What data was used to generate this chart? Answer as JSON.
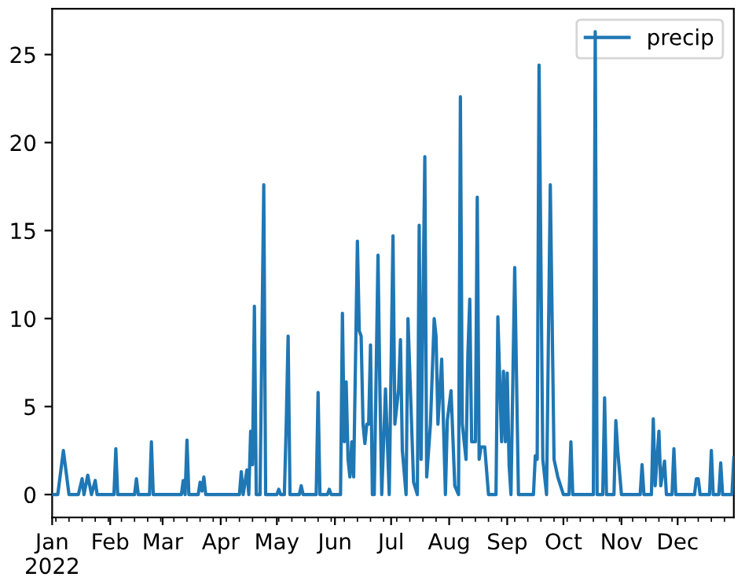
{
  "chart_data": {
    "type": "line",
    "x": [
      "2022-01-01",
      "2022-01-04",
      "2022-01-07",
      "2022-01-10",
      "2022-01-15",
      "2022-01-17",
      "2022-01-18",
      "2022-01-20",
      "2022-01-22",
      "2022-01-24",
      "2022-01-25",
      "2022-02-03",
      "2022-02-04",
      "2022-02-05",
      "2022-02-14",
      "2022-02-15",
      "2022-02-16",
      "2022-02-22",
      "2022-02-23",
      "2022-02-24",
      "2022-03-11",
      "2022-03-12",
      "2022-03-13",
      "2022-03-14",
      "2022-03-15",
      "2022-03-20",
      "2022-03-21",
      "2022-03-22",
      "2022-03-23",
      "2022-03-24",
      "2022-04-11",
      "2022-04-12",
      "2022-04-13",
      "2022-04-15",
      "2022-04-16",
      "2022-04-17",
      "2022-04-18",
      "2022-04-19",
      "2022-04-20",
      "2022-04-22",
      "2022-04-24",
      "2022-04-25",
      "2022-05-01",
      "2022-05-02",
      "2022-05-03",
      "2022-05-05",
      "2022-05-06",
      "2022-05-07",
      "2022-05-08",
      "2022-05-13",
      "2022-05-14",
      "2022-05-15",
      "2022-05-22",
      "2022-05-23",
      "2022-05-24",
      "2022-05-28",
      "2022-05-29",
      "2022-05-30",
      "2022-06-04",
      "2022-06-05",
      "2022-06-06",
      "2022-06-07",
      "2022-06-08",
      "2022-06-09",
      "2022-06-10",
      "2022-06-11",
      "2022-06-13",
      "2022-06-14",
      "2022-06-15",
      "2022-06-16",
      "2022-06-17",
      "2022-06-18",
      "2022-06-19",
      "2022-06-20",
      "2022-06-21",
      "2022-06-22",
      "2022-06-24",
      "2022-06-25",
      "2022-06-26",
      "2022-06-28",
      "2022-06-30",
      "2022-07-02",
      "2022-07-03",
      "2022-07-05",
      "2022-07-06",
      "2022-07-07",
      "2022-07-09",
      "2022-07-10",
      "2022-07-13",
      "2022-07-15",
      "2022-07-16",
      "2022-07-17",
      "2022-07-19",
      "2022-07-20",
      "2022-07-22",
      "2022-07-24",
      "2022-07-25",
      "2022-07-26",
      "2022-07-28",
      "2022-07-30",
      "2022-07-31",
      "2022-08-02",
      "2022-08-04",
      "2022-08-06",
      "2022-08-07",
      "2022-08-08",
      "2022-08-10",
      "2022-08-11",
      "2022-08-12",
      "2022-08-13",
      "2022-08-15",
      "2022-08-16",
      "2022-08-17",
      "2022-08-18",
      "2022-08-20",
      "2022-08-22",
      "2022-08-26",
      "2022-08-27",
      "2022-08-29",
      "2022-08-30",
      "2022-08-31",
      "2022-09-01",
      "2022-09-02",
      "2022-09-03",
      "2022-09-05",
      "2022-09-07",
      "2022-09-15",
      "2022-09-16",
      "2022-09-17",
      "2022-09-18",
      "2022-09-20",
      "2022-09-22",
      "2022-09-24",
      "2022-09-26",
      "2022-09-28",
      "2022-10-01",
      "2022-10-04",
      "2022-10-05",
      "2022-10-06",
      "2022-10-17",
      "2022-10-18",
      "2022-10-19",
      "2022-10-22",
      "2022-10-23",
      "2022-10-24",
      "2022-10-28",
      "2022-10-29",
      "2022-10-30",
      "2022-11-01",
      "2022-11-11",
      "2022-11-12",
      "2022-11-13",
      "2022-11-17",
      "2022-11-18",
      "2022-11-19",
      "2022-11-21",
      "2022-11-22",
      "2022-11-24",
      "2022-11-25",
      "2022-11-28",
      "2022-11-29",
      "2022-11-30",
      "2022-12-10",
      "2022-12-11",
      "2022-12-12",
      "2022-12-13",
      "2022-12-18",
      "2022-12-19",
      "2022-12-20",
      "2022-12-23",
      "2022-12-24",
      "2022-12-25",
      "2022-12-30",
      "2022-12-31"
    ],
    "series": [
      {
        "name": "precip",
        "color": "#1f77b4",
        "values": [
          0,
          0,
          2.5,
          0,
          0,
          0.9,
          0,
          1.1,
          0,
          0.8,
          0,
          0,
          2.6,
          0,
          0,
          0.9,
          0,
          0,
          3.0,
          0,
          0,
          0.8,
          0,
          3.1,
          0,
          0,
          0.7,
          0.2,
          1.0,
          0,
          0,
          1.3,
          0,
          1.4,
          0,
          3.6,
          1.7,
          10.7,
          0,
          0,
          17.6,
          0,
          0,
          0.3,
          0,
          0,
          4.0,
          9.0,
          0,
          0,
          0.5,
          0,
          0,
          5.8,
          0,
          0,
          0.3,
          0,
          0,
          10.3,
          3.0,
          6.4,
          2.0,
          1.0,
          3.0,
          1.0,
          14.4,
          9.3,
          9.0,
          4.0,
          2.9,
          4.0,
          4.0,
          8.5,
          0,
          0,
          13.6,
          6.0,
          0,
          6.0,
          0,
          14.7,
          4.0,
          6.0,
          8.8,
          2.5,
          0,
          10.0,
          0.7,
          0,
          15.3,
          2.0,
          19.2,
          1.0,
          4.0,
          10.0,
          9.0,
          4.0,
          7.7,
          0,
          4.2,
          5.9,
          0.5,
          0,
          22.6,
          4.0,
          2.0,
          8.0,
          11.1,
          3.0,
          3.0,
          16.9,
          2.0,
          2.7,
          2.7,
          0,
          0,
          10.1,
          3.0,
          7.0,
          3.0,
          6.9,
          1.7,
          0,
          12.9,
          0,
          0,
          2.2,
          2.0,
          24.4,
          2.0,
          0,
          17.6,
          2.0,
          1.0,
          0,
          0,
          3.0,
          0,
          0,
          26.3,
          0,
          0,
          5.5,
          0,
          0,
          4.2,
          2.5,
          0,
          0,
          1.7,
          0,
          0,
          4.3,
          0.5,
          3.6,
          0.5,
          1.9,
          0,
          0,
          2.6,
          0,
          0,
          0.9,
          0.9,
          0,
          0,
          2.5,
          0,
          0,
          1.8,
          0,
          0,
          2.1
        ]
      }
    ],
    "xlim": [
      "2022-01-01",
      "2022-12-31"
    ],
    "xticks": [
      {
        "value": "2022-01-01",
        "label": "Jan\n2022"
      },
      {
        "value": "2022-02-01",
        "label": "Feb"
      },
      {
        "value": "2022-03-01",
        "label": "Mar"
      },
      {
        "value": "2022-04-01",
        "label": "Apr"
      },
      {
        "value": "2022-05-01",
        "label": "May"
      },
      {
        "value": "2022-06-01",
        "label": "Jun"
      },
      {
        "value": "2022-07-01",
        "label": "Jul"
      },
      {
        "value": "2022-08-01",
        "label": "Aug"
      },
      {
        "value": "2022-09-01",
        "label": "Sep"
      },
      {
        "value": "2022-10-01",
        "label": "Oct"
      },
      {
        "value": "2022-11-01",
        "label": "Nov"
      },
      {
        "value": "2022-12-01",
        "label": "Dec"
      }
    ],
    "ylim": [
      -1.3,
      27.6
    ],
    "yticks": [
      0,
      5,
      10,
      15,
      20,
      25
    ],
    "legend": "top right",
    "grid": false,
    "marker": "none",
    "line_style": "solid"
  }
}
